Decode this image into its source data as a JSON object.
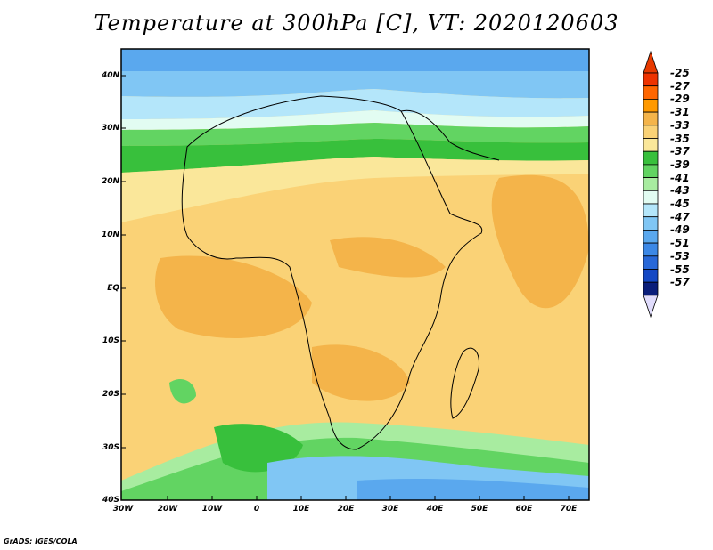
{
  "title": "Temperature at 300hPa [C], VT: 2020120603",
  "credit": "GrADS: IGES/COLA",
  "lat_labels": [
    "40N",
    "30N",
    "20N",
    "10N",
    "EQ",
    "10S",
    "20S",
    "30S",
    "40S"
  ],
  "lon_labels": [
    "30W",
    "20W",
    "10W",
    "0",
    "10E",
    "20E",
    "30E",
    "40E",
    "50E",
    "60E",
    "70E"
  ],
  "colorbar": {
    "labels": [
      "-25",
      "-27",
      "-29",
      "-31",
      "-33",
      "-35",
      "-37",
      "-39",
      "-41",
      "-43",
      "-45",
      "-47",
      "-49",
      "-51",
      "-53",
      "-55",
      "-57"
    ],
    "colors": [
      "#ee3300",
      "#ff6600",
      "#ff9900",
      "#f4b44a",
      "#fad276",
      "#fae79a",
      "#38c03c",
      "#62d462",
      "#a8eca0",
      "#e2fcf2",
      "#b4e6fa",
      "#80c6f4",
      "#5aa8ee",
      "#3c88e6",
      "#2868d8",
      "#1448c4",
      "#0a1e7a"
    ],
    "top_arrow_color": "#e83a00",
    "bottom_arrow_color": "#e0dcfc"
  }
}
